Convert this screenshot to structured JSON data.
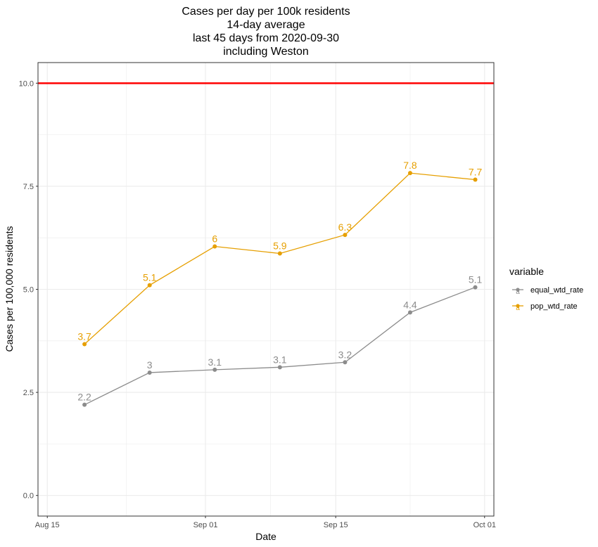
{
  "chart_data": {
    "type": "line",
    "title_lines": [
      "Cases per day per 100k residents",
      "14-day average",
      "last 45 days from 2020-09-30",
      "including Weston"
    ],
    "xlabel": "Date",
    "ylabel": "Cases per 100,000 residents",
    "x_ticks": [
      {
        "date": "2020-08-15",
        "label": "Aug 15"
      },
      {
        "date": "2020-09-01",
        "label": "Sep 01"
      },
      {
        "date": "2020-09-15",
        "label": "Sep 15"
      },
      {
        "date": "2020-10-01",
        "label": "Oct 01"
      }
    ],
    "y_ticks": [
      {
        "value": 0,
        "label": "0.0"
      },
      {
        "value": 2.5,
        "label": "2.5"
      },
      {
        "value": 5,
        "label": "5.0"
      },
      {
        "value": 7.5,
        "label": "7.5"
      },
      {
        "value": 10,
        "label": "10.0"
      }
    ],
    "xlim": [
      "2020-08-14",
      "2020-10-02"
    ],
    "ylim": [
      -0.5,
      10.5
    ],
    "reference_line": {
      "y": 10,
      "color": "#ff0000"
    },
    "grid": true,
    "legend": {
      "title": "variable",
      "position": "right"
    },
    "series": [
      {
        "name": "equal_wtd_rate",
        "color": "#8c8c8c",
        "x": [
          "2020-08-19",
          "2020-08-26",
          "2020-09-02",
          "2020-09-09",
          "2020-09-16",
          "2020-09-23",
          "2020-09-30"
        ],
        "values": [
          2.2,
          2.98,
          3.05,
          3.11,
          3.23,
          4.44,
          5.05
        ],
        "labels": [
          "2.2",
          "3",
          "3.1",
          "3.1",
          "3.2",
          "4.4",
          "5.1"
        ]
      },
      {
        "name": "pop_wtd_rate",
        "color": "#e69f00",
        "x": [
          "2020-08-19",
          "2020-08-26",
          "2020-09-02",
          "2020-09-09",
          "2020-09-16",
          "2020-09-23",
          "2020-09-30"
        ],
        "values": [
          3.67,
          5.1,
          6.04,
          5.87,
          6.32,
          7.82,
          7.66
        ],
        "labels": [
          "3.7",
          "5.1",
          "6",
          "5.9",
          "6.3",
          "7.8",
          "7.7"
        ]
      }
    ]
  }
}
